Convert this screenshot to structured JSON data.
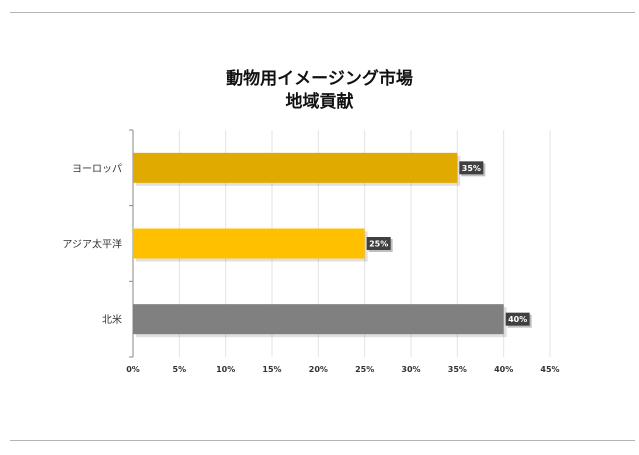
{
  "chart_data": {
    "type": "bar",
    "orientation": "horizontal",
    "title": "動物用イメージング市場",
    "subtitle": "地域貢献",
    "categories": [
      "ヨーロッパ",
      "アジア太平洋",
      "北米"
    ],
    "values": [
      35,
      25,
      40
    ],
    "data_labels": [
      "35%",
      "25%",
      "40%"
    ],
    "bar_colors": [
      "#e0aa00",
      "#ffc000",
      "#808080"
    ],
    "xlim": [
      0,
      45
    ],
    "x_ticks": [
      0,
      5,
      10,
      15,
      20,
      25,
      30,
      35,
      40,
      45
    ],
    "x_tick_labels": [
      "0%",
      "5%",
      "10%",
      "15%",
      "20%",
      "25%",
      "30%",
      "35%",
      "40%",
      "45%"
    ],
    "grid": true,
    "legend": "none",
    "data_label_bg": "#404040"
  }
}
